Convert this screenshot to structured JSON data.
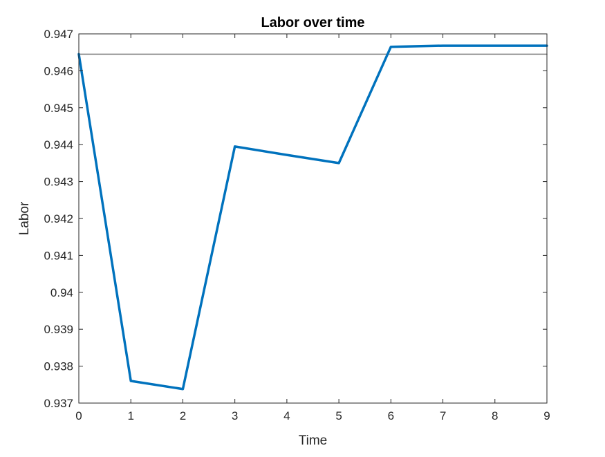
{
  "chart_data": {
    "type": "line",
    "title": "Labor over time",
    "xlabel": "Time",
    "ylabel": "Labor",
    "xlim": [
      0,
      9
    ],
    "ylim": [
      0.937,
      0.947
    ],
    "xticks": [
      0,
      1,
      2,
      3,
      4,
      5,
      6,
      7,
      8,
      9
    ],
    "xtick_labels": [
      "0",
      "1",
      "2",
      "3",
      "4",
      "5",
      "6",
      "7",
      "8",
      "9"
    ],
    "yticks": [
      0.937,
      0.938,
      0.939,
      0.94,
      0.941,
      0.942,
      0.943,
      0.944,
      0.945,
      0.946,
      0.947
    ],
    "ytick_labels": [
      "0.937",
      "0.938",
      "0.939",
      "0.94",
      "0.941",
      "0.942",
      "0.943",
      "0.944",
      "0.945",
      "0.946",
      "0.947"
    ],
    "grid": false,
    "series": [
      {
        "x": [
          0,
          1,
          2,
          3,
          4,
          5,
          6,
          7,
          8,
          9
        ],
        "values": [
          0.94645,
          0.9376,
          0.93738,
          0.94395,
          0.94372,
          0.9435,
          0.94665,
          0.94668,
          0.94668,
          0.94668
        ],
        "color": "#0072BD"
      },
      {
        "x": [
          0,
          9
        ],
        "values": [
          0.94645,
          0.94645
        ],
        "color": "#808080"
      }
    ]
  }
}
